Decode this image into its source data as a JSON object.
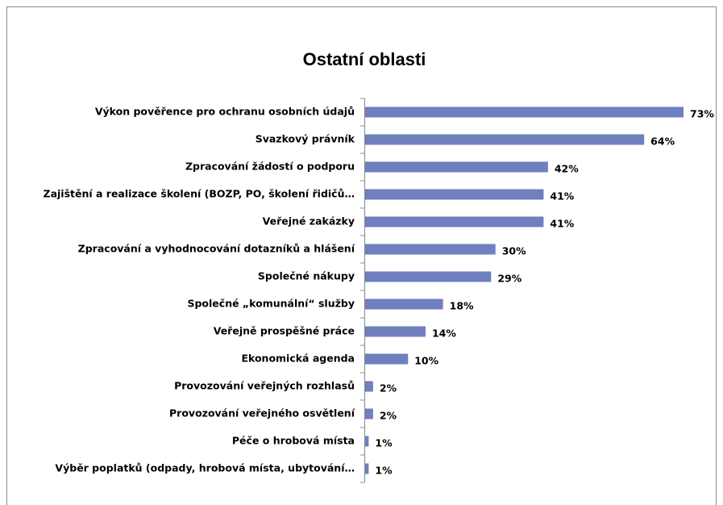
{
  "chart_data": {
    "type": "bar",
    "orientation": "horizontal",
    "title": "Ostatní oblasti",
    "categories": [
      "Výkon pověřence pro ochranu osobních údajů",
      "Svazkový právník",
      "Zpracování žádostí o podporu",
      "Zajištění a realizace školení (BOZP, PO, školení řidičů…",
      "Veřejné zakázky",
      "Zpracování a vyhodnocování dotazníků a hlášení",
      "Společné nákupy",
      "Společné „komunální“ služby",
      "Veřejně prospěšné práce",
      "Ekonomická agenda",
      "Provozování veřejných rozhlasů",
      "Provozování veřejného osvětlení",
      "Péče o hrobová místa",
      "Výběr poplatků (odpady, hrobová místa, ubytování…"
    ],
    "values": [
      73,
      64,
      42,
      41,
      41,
      30,
      29,
      18,
      14,
      10,
      2,
      2,
      1,
      1
    ],
    "value_labels": [
      "73%",
      "64%",
      "42%",
      "41%",
      "41%",
      "30%",
      "29%",
      "18%",
      "14%",
      "10%",
      "2%",
      "2%",
      "1%",
      "1%"
    ],
    "color": "#6f7fbf"
  }
}
